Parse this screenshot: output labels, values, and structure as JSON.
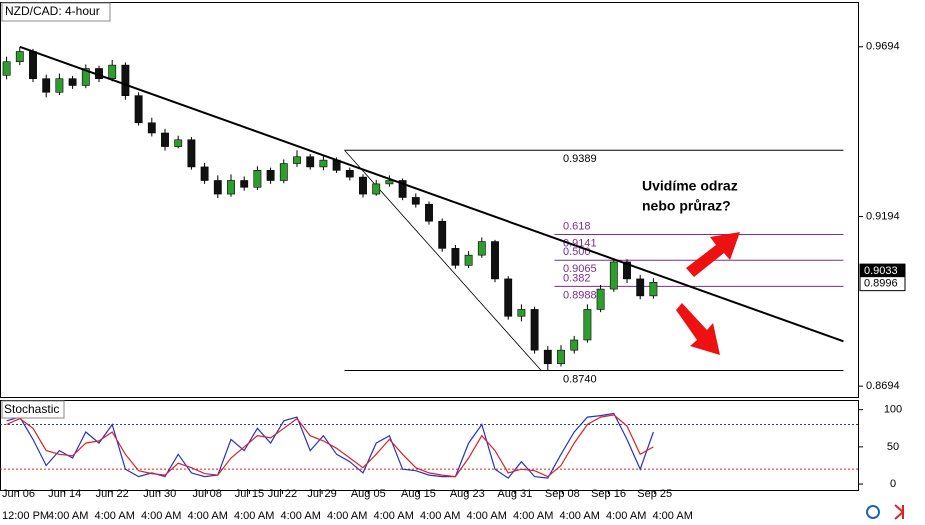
{
  "chart_data": [
    {
      "type": "candlestick",
      "title": "NZD/CAD: 4-hour",
      "open": [
        0.961,
        0.965,
        0.968,
        0.96,
        0.956,
        0.96,
        0.958,
        0.963,
        0.96,
        0.964,
        0.955,
        0.947,
        0.944,
        0.94,
        0.942,
        0.934,
        0.93,
        0.926,
        0.93,
        0.928,
        0.933,
        0.93,
        0.935,
        0.937,
        0.934,
        0.936,
        0.933,
        0.931,
        0.926,
        0.929,
        0.93,
        0.925,
        0.923,
        0.918,
        0.91,
        0.905,
        0.908,
        0.912,
        0.901,
        0.89,
        0.892,
        0.88,
        0.876,
        0.88,
        0.883,
        0.892,
        0.898,
        0.906,
        0.901,
        0.896
      ],
      "high": [
        0.9665,
        0.9694,
        0.9688,
        0.9612,
        0.9615,
        0.9608,
        0.9642,
        0.9638,
        0.9655,
        0.9648,
        0.956,
        0.9485,
        0.9452,
        0.9432,
        0.9428,
        0.9352,
        0.9315,
        0.9318,
        0.9312,
        0.9342,
        0.9338,
        0.9362,
        0.9389,
        0.9378,
        0.9372,
        0.9368,
        0.9338,
        0.9318,
        0.9302,
        0.9315,
        0.9306,
        0.9262,
        0.9238,
        0.9188,
        0.911,
        0.9092,
        0.9132,
        0.9125,
        0.9018,
        0.8935,
        0.8928,
        0.8812,
        0.8815,
        0.8842,
        0.8935,
        0.8992,
        0.907,
        0.9068,
        0.9022,
        0.9012
      ],
      "low": [
        0.9598,
        0.964,
        0.959,
        0.9545,
        0.9552,
        0.957,
        0.9572,
        0.959,
        0.9592,
        0.9538,
        0.9462,
        0.943,
        0.9388,
        0.9395,
        0.9332,
        0.929,
        0.9248,
        0.9252,
        0.927,
        0.9272,
        0.929,
        0.9292,
        0.934,
        0.9332,
        0.933,
        0.9322,
        0.93,
        0.925,
        0.9255,
        0.9282,
        0.9242,
        0.922,
        0.917,
        0.909,
        0.904,
        0.9042,
        0.9072,
        0.9,
        0.889,
        0.8885,
        0.879,
        0.874,
        0.8752,
        0.879,
        0.8822,
        0.8912,
        0.8972,
        0.8998,
        0.895,
        0.8952
      ],
      "close": [
        0.965,
        0.968,
        0.96,
        0.956,
        0.96,
        0.958,
        0.963,
        0.96,
        0.964,
        0.955,
        0.947,
        0.944,
        0.94,
        0.942,
        0.934,
        0.93,
        0.926,
        0.93,
        0.928,
        0.933,
        0.93,
        0.935,
        0.937,
        0.934,
        0.936,
        0.933,
        0.931,
        0.926,
        0.929,
        0.93,
        0.925,
        0.923,
        0.918,
        0.91,
        0.905,
        0.908,
        0.912,
        0.901,
        0.89,
        0.892,
        0.88,
        0.876,
        0.88,
        0.883,
        0.892,
        0.898,
        0.906,
        0.901,
        0.896,
        0.9
      ],
      "up_color": "#2e9d2e",
      "down_color": "#111111",
      "xlim": [
        0,
        65
      ],
      "ylim": [
        0.8662,
        0.9826
      ],
      "yticks": [
        0.8694,
        0.9194,
        0.9694
      ],
      "xticks": [
        {
          "value": 1.4,
          "label": "Jun 06"
        },
        {
          "value": 4.9,
          "label": "Jun 14"
        },
        {
          "value": 8.5,
          "label": "Jun 22"
        },
        {
          "value": 12.1,
          "label": "Jun 30"
        },
        {
          "value": 15.7,
          "label": "Jul 08"
        },
        {
          "value": 18.9,
          "label": "Jul 15"
        },
        {
          "value": 21.4,
          "label": "Jul 22"
        },
        {
          "value": 24.4,
          "label": "Jul 29"
        },
        {
          "value": 27.9,
          "label": "Aug 05"
        },
        {
          "value": 31.7,
          "label": "Aug 15"
        },
        {
          "value": 35.4,
          "label": "Aug 23"
        },
        {
          "value": 39,
          "label": "Aug 31"
        },
        {
          "value": 42.6,
          "label": "Sep 08"
        },
        {
          "value": 46.1,
          "label": "Sep 16"
        },
        {
          "value": 49.6,
          "label": "Sep 25"
        }
      ],
      "time_labels": [
        "12:00 PM",
        "4:00 AM",
        "4:00 AM",
        "4:00 AM",
        "4:00 AM",
        "4:00 AM",
        "4:00 AM",
        "4:00 AM",
        "4:00 AM",
        "4:00 AM",
        "4:00 AM",
        "4:00 AM",
        "4:00 AM",
        "4:00 AM",
        "4:00 AM"
      ],
      "trendline": {
        "x": [
          1.5,
          63.9
        ],
        "y": [
          0.9694,
          0.8826
        ]
      },
      "swing_line": {
        "x": [
          26.1,
          41
        ],
        "y": [
          0.9389,
          0.874
        ]
      },
      "retracement": {
        "high": 0.9389,
        "low": {
          "value": 0.874,
          "label": "0.8740"
        },
        "x": [
          26.1,
          63.9
        ]
      },
      "fib_levels": [
        {
          "ratio": 0.618,
          "price": 0.9141
        },
        {
          "ratio": {
            "value": 0.5,
            "label": "0.500"
          },
          "price": 0.9065
        },
        {
          "ratio": 0.382,
          "price": 0.8988
        }
      ],
      "fib_x": [
        42,
        63.9
      ],
      "fib_color": "#7b2d8e",
      "price_labels": [
        0.9033,
        0.8996
      ],
      "annotation": [
        "Uvidíme odraz",
        "nebo průraz?"
      ]
    },
    {
      "type": "line",
      "title": "Stochastic",
      "series": [
        {
          "color": "#2233cc",
          "values": [
            85,
            90,
            60,
            25,
            45,
            35,
            70,
            55,
            80,
            20,
            10,
            15,
            10,
            40,
            15,
            10,
            12,
            60,
            45,
            75,
            55,
            85,
            90,
            45,
            65,
            40,
            30,
            15,
            55,
            65,
            20,
            18,
            12,
            10,
            10,
            55,
            80,
            20,
            8,
            30,
            10,
            8,
            40,
            70,
            90,
            92,
            95,
            60,
            20,
            70
          ]
        },
        {
          "color": "#dd2222",
          "values": [
            80,
            88,
            75,
            45,
            40,
            38,
            55,
            58,
            70,
            40,
            18,
            14,
            12,
            28,
            22,
            14,
            12,
            35,
            50,
            65,
            62,
            75,
            88,
            65,
            58,
            48,
            35,
            22,
            40,
            60,
            40,
            22,
            15,
            12,
            10,
            35,
            65,
            45,
            15,
            20,
            18,
            10,
            25,
            55,
            80,
            90,
            93,
            78,
            40,
            50
          ]
        }
      ],
      "levels": [
        {
          "value": 80,
          "color": "#2233cc"
        },
        {
          "value": 20,
          "color": "#dd2222"
        }
      ],
      "xlim": [
        0,
        65
      ],
      "ylim": [
        -8,
        113
      ],
      "yticks": [
        0,
        50,
        100
      ]
    }
  ]
}
